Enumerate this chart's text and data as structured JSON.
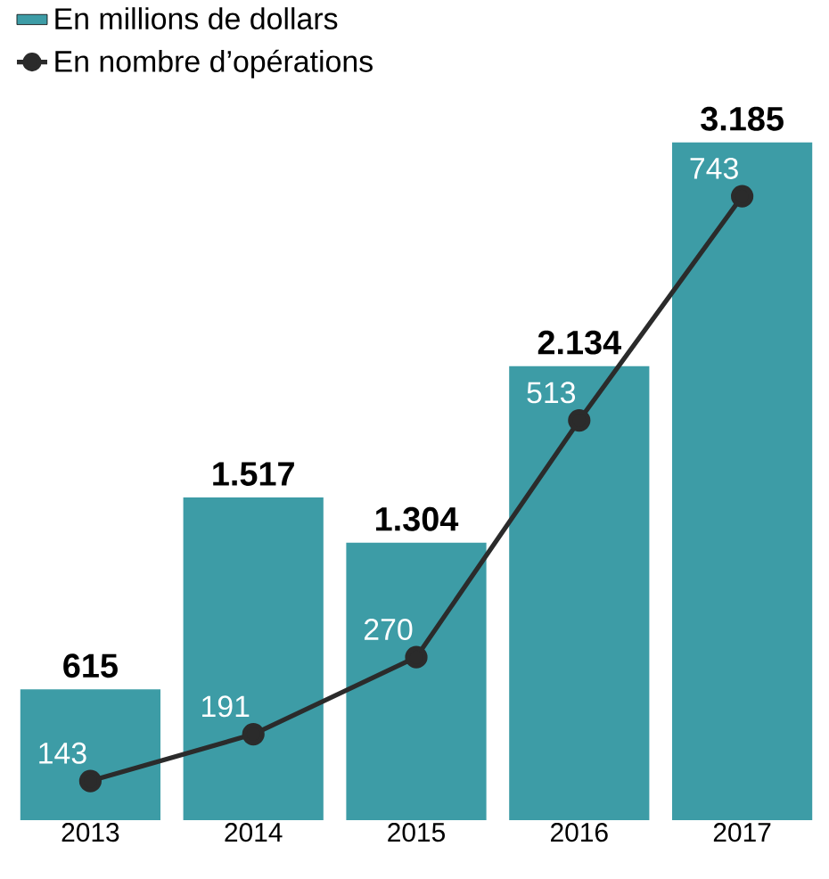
{
  "chart_data": {
    "type": "bar",
    "categories": [
      "2013",
      "2014",
      "2015",
      "2016",
      "2017"
    ],
    "series": [
      {
        "name": "En millions de dollars",
        "color": "#3d9ca6",
        "values": [
          615,
          1517,
          1304,
          2134,
          3185
        ],
        "value_labels": [
          "615",
          "1.517",
          "1.304",
          "2.134",
          "3.185"
        ]
      },
      {
        "name": "En nombre d’opérations",
        "type": "line",
        "axis": "y2",
        "color": "#2b2b2b",
        "values": [
          143,
          191,
          270,
          513,
          743
        ],
        "value_labels": [
          "143",
          "191",
          "270",
          "513",
          "743"
        ]
      }
    ],
    "tick_labels": "x",
    "legend": "top left",
    "marker": "circle",
    "grid": false
  }
}
